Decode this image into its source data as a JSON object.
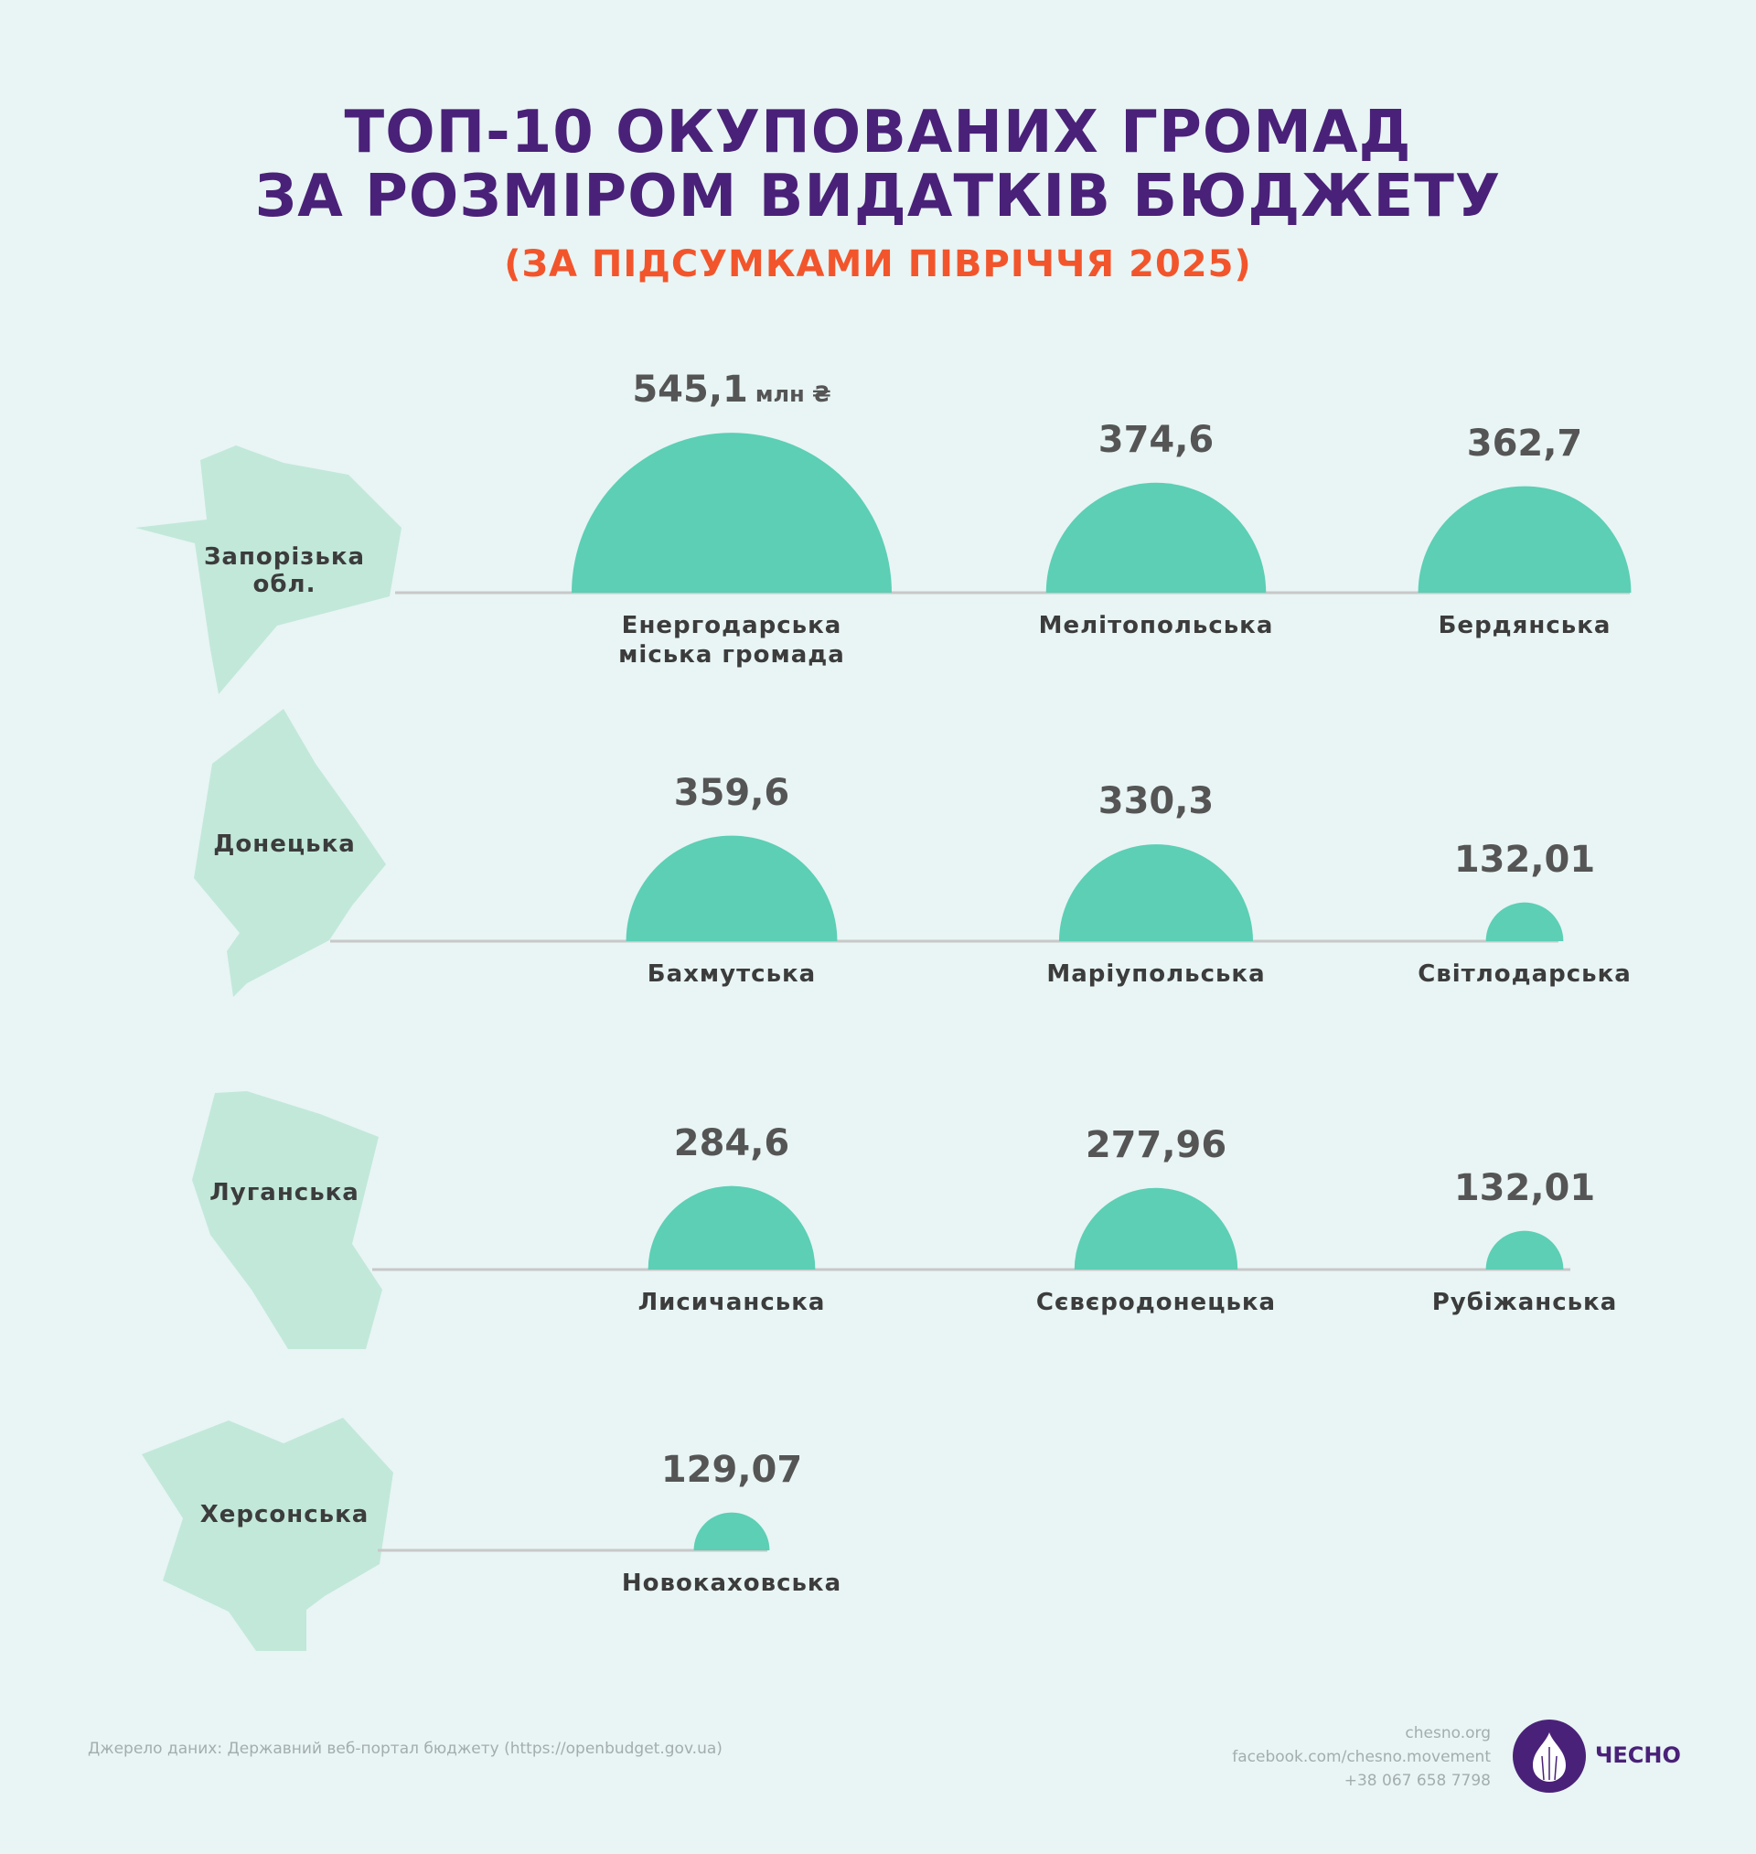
{
  "title_line1": "ТОП-10 ОКУПОВАНИХ ГРОМАД",
  "title_line2": "ЗА РОЗМІРОМ ВИДАТКІВ БЮДЖЕТУ",
  "subtitle": "(ЗА ПІДСУМКАМИ ПІВРІЧЧЯ 2025)",
  "unit": "млн ₴",
  "chart_data": {
    "type": "bar",
    "title": "ТОП-10 ОКУПОВАНИХ ГРОМАД ЗА РОЗМІРОМ ВИДАТКІВ БЮДЖЕТУ",
    "unit": "млн ₴",
    "groups": [
      {
        "region": "Запорізька\nобл.",
        "items": [
          {
            "name": "Енергодарська\nміська громада",
            "value": 545.1,
            "label": "545,1"
          },
          {
            "name": "Мелітопольська",
            "value": 374.6,
            "label": "374,6"
          },
          {
            "name": "Бердянська",
            "value": 362.7,
            "label": "362,7"
          }
        ]
      },
      {
        "region": "Донецька",
        "items": [
          {
            "name": "Бахмутська",
            "value": 359.6,
            "label": "359,6"
          },
          {
            "name": "Маріупольська",
            "value": 330.3,
            "label": "330,3"
          },
          {
            "name": "Світлодарська",
            "value": 132.01,
            "label": "132,01"
          }
        ]
      },
      {
        "region": "Луганська",
        "items": [
          {
            "name": "Лисичанська",
            "value": 284.6,
            "label": "284,6"
          },
          {
            "name": "Сєвєродонецька",
            "value": 277.96,
            "label": "277,96"
          },
          {
            "name": "Рубіжанська",
            "value": 132.01,
            "label": "132,01"
          }
        ]
      },
      {
        "region": "Херсонська",
        "items": [
          {
            "name": "Новокаховська",
            "value": 129.07,
            "label": "129,07"
          }
        ]
      }
    ]
  },
  "footer": {
    "source": "Джерело даних: Державний веб-портал бюджету (https://openbudget.gov.ua)",
    "website": "chesno.org",
    "facebook": "facebook.com/chesno.movement",
    "phone": "+38 067 658 7798",
    "logo_text": "ЧЕСНО"
  },
  "colors": {
    "title": "#4a2178",
    "subtitle": "#f2552c",
    "bubble": "#5ccfb5",
    "map": "#c2e8da",
    "line": "#c8c8c8"
  }
}
